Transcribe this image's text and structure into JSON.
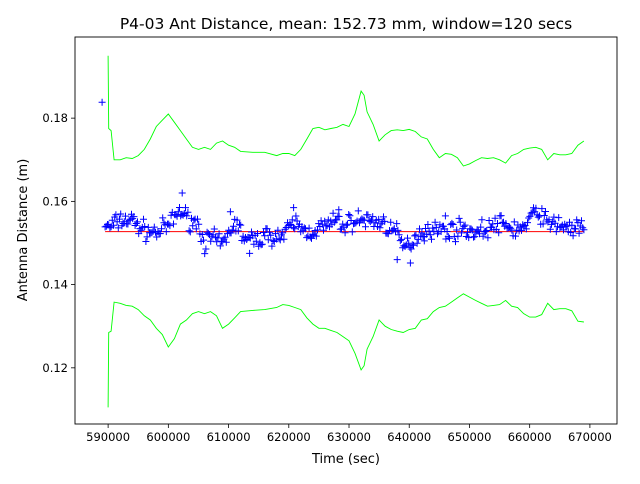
{
  "chart_data": {
    "type": "scatter",
    "title": "P4-03 Ant Distance, mean: 152.73 mm, window=120 secs",
    "xlabel": "Time (sec)",
    "ylabel": "Antenna Distance (m)",
    "xlim": [
      584500,
      674500
    ],
    "ylim": [
      0.1065,
      0.1995
    ],
    "xticks": [
      590000,
      600000,
      610000,
      620000,
      630000,
      640000,
      650000,
      660000,
      670000
    ],
    "xtick_labels": [
      "590000",
      "600000",
      "610000",
      "620000",
      "630000",
      "640000",
      "650000",
      "660000",
      "670000"
    ],
    "yticks": [
      0.12,
      0.14,
      0.16,
      0.18
    ],
    "ytick_labels": [
      "0.12",
      "0.14",
      "0.16",
      "0.18"
    ],
    "grid": false,
    "colors": {
      "points": "#0000ff",
      "mean": "#ff0000",
      "bounds": "#00ff00"
    },
    "mean": 0.15273,
    "mean_x_range": [
      589500,
      669000
    ],
    "upper_bound": {
      "x": [
        590000,
        590100,
        590500,
        591000,
        592000,
        593000,
        594000,
        595000,
        596000,
        597000,
        598000,
        599000,
        600000,
        601000,
        602000,
        603000,
        604000,
        605000,
        606000,
        607000,
        608000,
        609000,
        610000,
        611000,
        612000,
        614000,
        616000,
        618000,
        619000,
        620000,
        621000,
        622000,
        623000,
        624000,
        625000,
        626000,
        627000,
        628000,
        629000,
        630000,
        631000,
        632000,
        632500,
        633000,
        634000,
        635000,
        636000,
        637000,
        638000,
        639000,
        640000,
        641000,
        642000,
        643000,
        644000,
        645000,
        646000,
        647000,
        648000,
        649000,
        650000,
        651000,
        652000,
        653000,
        654000,
        655000,
        656000,
        657000,
        658000,
        659000,
        660000,
        661000,
        662000,
        663000,
        664000,
        665000,
        666000,
        667000,
        668000,
        669000
      ],
      "y": [
        0.195,
        0.1775,
        0.177,
        0.17,
        0.17,
        0.1705,
        0.1703,
        0.171,
        0.1725,
        0.175,
        0.178,
        0.1795,
        0.181,
        0.179,
        0.177,
        0.175,
        0.173,
        0.1725,
        0.173,
        0.1725,
        0.174,
        0.1745,
        0.1735,
        0.173,
        0.172,
        0.1718,
        0.1718,
        0.171,
        0.1715,
        0.1715,
        0.171,
        0.1725,
        0.175,
        0.1775,
        0.1778,
        0.1772,
        0.1775,
        0.1778,
        0.1785,
        0.178,
        0.181,
        0.1865,
        0.1855,
        0.1815,
        0.1785,
        0.1745,
        0.176,
        0.177,
        0.1772,
        0.177,
        0.1773,
        0.1768,
        0.1755,
        0.175,
        0.1725,
        0.1705,
        0.1715,
        0.1713,
        0.1705,
        0.1685,
        0.169,
        0.1698,
        0.1705,
        0.1703,
        0.1705,
        0.17,
        0.1692,
        0.171,
        0.1715,
        0.1725,
        0.1728,
        0.173,
        0.1725,
        0.17,
        0.1715,
        0.1712,
        0.1712,
        0.1715,
        0.1735,
        0.1745
      ]
    },
    "lower_bound": {
      "x": [
        590000,
        590100,
        590500,
        591000,
        592000,
        593000,
        594000,
        595000,
        596000,
        597000,
        598000,
        599000,
        600000,
        601000,
        602000,
        603000,
        604000,
        605000,
        606000,
        607000,
        608000,
        609000,
        610000,
        611000,
        612000,
        614000,
        616000,
        618000,
        619000,
        620000,
        621000,
        622000,
        623000,
        624000,
        625000,
        626000,
        627000,
        628000,
        629000,
        630000,
        631000,
        632000,
        632500,
        633000,
        634000,
        635000,
        636000,
        637000,
        638000,
        639000,
        640000,
        641000,
        642000,
        643000,
        644000,
        645000,
        646000,
        647000,
        648000,
        649000,
        650000,
        651000,
        652000,
        653000,
        654000,
        655000,
        656000,
        657000,
        658000,
        659000,
        660000,
        661000,
        662000,
        663000,
        664000,
        665000,
        666000,
        667000,
        668000,
        669000
      ],
      "y": [
        0.1105,
        0.1285,
        0.1288,
        0.1358,
        0.1355,
        0.135,
        0.1348,
        0.134,
        0.1325,
        0.1315,
        0.1295,
        0.128,
        0.125,
        0.127,
        0.1305,
        0.1315,
        0.133,
        0.1335,
        0.133,
        0.1335,
        0.1325,
        0.1295,
        0.1305,
        0.132,
        0.1335,
        0.1338,
        0.134,
        0.1345,
        0.1352,
        0.135,
        0.1345,
        0.134,
        0.132,
        0.1305,
        0.1295,
        0.1295,
        0.129,
        0.1285,
        0.1275,
        0.1265,
        0.1235,
        0.1195,
        0.1205,
        0.1245,
        0.1275,
        0.1315,
        0.13,
        0.1292,
        0.1288,
        0.1285,
        0.1292,
        0.1295,
        0.1315,
        0.1318,
        0.1335,
        0.1345,
        0.1348,
        0.1358,
        0.1368,
        0.1378,
        0.137,
        0.1362,
        0.1355,
        0.1348,
        0.135,
        0.1352,
        0.1362,
        0.1348,
        0.1345,
        0.133,
        0.1322,
        0.1322,
        0.1328,
        0.1355,
        0.134,
        0.1342,
        0.1342,
        0.1337,
        0.1312,
        0.131
      ]
    },
    "series": [
      {
        "trend_x": [
          589500,
          590000,
          592000,
          594000,
          596000,
          598000,
          600000,
          602000,
          603000,
          605000,
          606000,
          607000,
          608000,
          609000,
          611000,
          613000,
          615000,
          617000,
          619000,
          621000,
          622000,
          623000,
          625000,
          627000,
          628000,
          629000,
          631000,
          633000,
          635000,
          636000,
          637000,
          638000,
          639000,
          640000,
          641000,
          642000,
          643000,
          645000,
          647000,
          649000,
          651000,
          653000,
          655000,
          657000,
          659000,
          660000,
          661000,
          662000,
          663000,
          665000,
          667000,
          669000
        ],
        "trend_y": [
          0.1545,
          0.1535,
          0.1555,
          0.1555,
          0.153,
          0.1525,
          0.154,
          0.158,
          0.156,
          0.1545,
          0.15,
          0.151,
          0.1505,
          0.1495,
          0.155,
          0.1505,
          0.151,
          0.152,
          0.1515,
          0.155,
          0.1535,
          0.1525,
          0.1535,
          0.1545,
          0.1555,
          0.154,
          0.1555,
          0.1555,
          0.155,
          0.1545,
          0.1535,
          0.152,
          0.149,
          0.1495,
          0.1515,
          0.1525,
          0.1535,
          0.153,
          0.153,
          0.1535,
          0.1525,
          0.1535,
          0.1545,
          0.1535,
          0.1535,
          0.1555,
          0.1575,
          0.157,
          0.1545,
          0.1545,
          0.1535,
          0.1535
        ],
        "outliers_x": [
          589000,
          602300,
          610300,
          613500,
          620800,
          628300,
          638000,
          640200,
          642500,
          646000
        ],
        "outliers_y": [
          0.1838,
          0.162,
          0.1575,
          0.1475,
          0.1585,
          0.158,
          0.146,
          0.1452,
          0.1505,
          0.1565
        ]
      }
    ]
  }
}
